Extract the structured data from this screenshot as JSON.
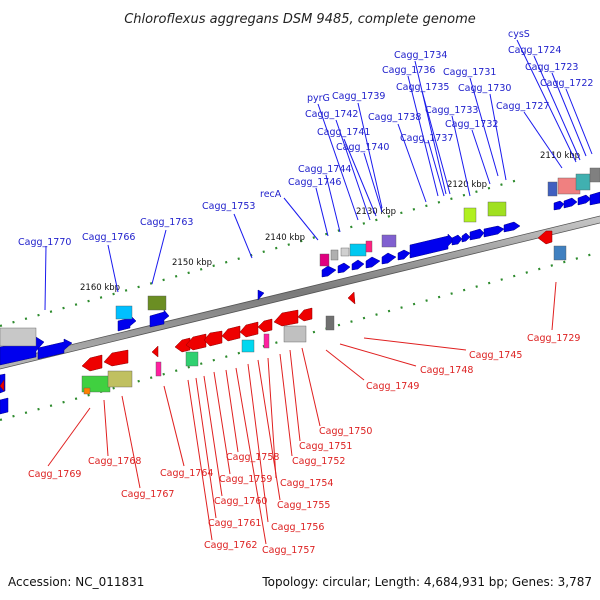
{
  "title": "Chloroflexus aggregans DSM 9485, complete genome",
  "footer": {
    "accession": "Accession: NC_011831",
    "stats": "Topology: circular; Length: 4,684,931 bp; Genes: 3,787"
  },
  "ticks": [
    "2110 kbp",
    "2120 kbp",
    "2130 kbp",
    "2140 kbp",
    "2150 kbp",
    "2160 kbp"
  ],
  "forward_labels": [
    "Cagg_1770",
    "Cagg_1766",
    "Cagg_1763",
    "Cagg_1753",
    "recA",
    "Cagg_1746",
    "Cagg_1744",
    "Cagg_1740",
    "Cagg_1741",
    "Cagg_1742",
    "pyrG",
    "Cagg_1739",
    "Cagg_1738",
    "Cagg_1737",
    "Cagg_1736",
    "Cagg_1734",
    "Cagg_1735",
    "Cagg_1733",
    "Cagg_1732",
    "Cagg_1731",
    "Cagg_1730",
    "cysS",
    "Cagg_1724",
    "Cagg_1723",
    "Cagg_1722",
    "Cagg_1727"
  ],
  "reverse_labels": [
    "Cagg_1729",
    "Cagg_1745",
    "Cagg_1748",
    "Cagg_1749",
    "Cagg_1750",
    "Cagg_1751",
    "Cagg_1752",
    "Cagg_1754",
    "Cagg_1755",
    "Cagg_1756",
    "Cagg_1757",
    "Cagg_1758",
    "Cagg_1759",
    "Cagg_1760",
    "Cagg_1761",
    "Cagg_1762",
    "Cagg_1764",
    "Cagg_1767",
    "Cagg_1768",
    "Cagg_1769"
  ],
  "colors": {
    "forward_gene": "#0000ee",
    "reverse_gene": "#ee0000",
    "forward_label": "#2222cc",
    "reverse_label": "#dd2222",
    "backbone": "#8a8a8a",
    "tick": "#228b22"
  }
}
